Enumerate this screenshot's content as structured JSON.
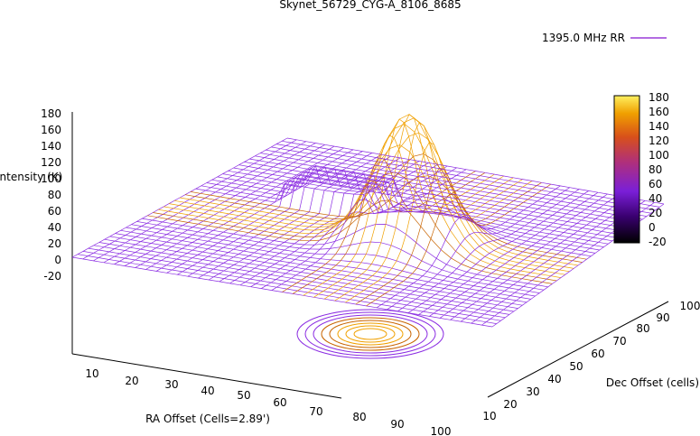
{
  "chart_data": {
    "type": "surface3d",
    "title": "Skynet_56729_CYG-A_8106_8685",
    "legend": {
      "position": "top-right",
      "entries": [
        {
          "name": "1395.0 MHz RR",
          "color": "#9a3cd8"
        }
      ]
    },
    "xlabel": "RA Offset (Cells=2.89')",
    "ylabel": "Dec Offset (cells)",
    "zlabel": "Intensity (K)",
    "x_ticks": [
      "10",
      "20",
      "30",
      "40",
      "50",
      "60",
      "70",
      "80",
      "90",
      "100"
    ],
    "y_ticks": [
      "10",
      "20",
      "30",
      "40",
      "50",
      "60",
      "70",
      "80",
      "90",
      "100"
    ],
    "z_ticks": [
      "180",
      "160",
      "140",
      "120",
      "100",
      "80",
      "60",
      "40",
      "20",
      "0",
      "-20"
    ],
    "xlim": [
      0,
      100
    ],
    "ylim": [
      0,
      100
    ],
    "zlim": [
      -20,
      180
    ],
    "colorbar": {
      "ticks": [
        "180",
        "160",
        "140",
        "120",
        "100",
        "80",
        "60",
        "40",
        "20",
        "0",
        "-20"
      ],
      "range": [
        -20,
        180
      ]
    },
    "colors": {
      "surface": "#8a2be2",
      "peak": "#f0a000",
      "contour": "#c86400"
    },
    "peak_intensity_K": 180,
    "baseline_intensity_K": 20
  }
}
